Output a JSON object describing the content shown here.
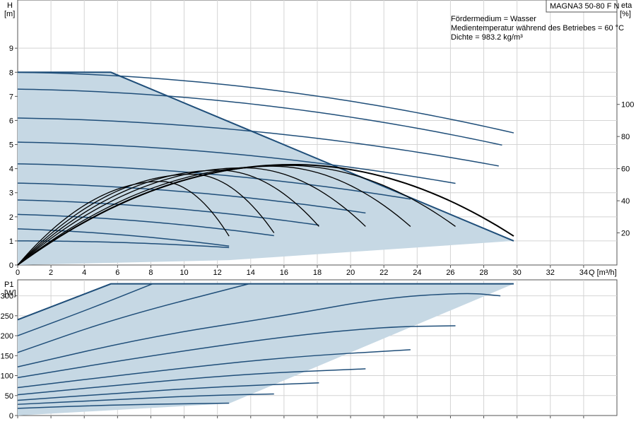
{
  "chart_data": {
    "type": "line",
    "model": "MAGNA3 50-80 F N",
    "info_lines": [
      "Fördermedium = Wasser",
      "Medientemperatur während des Betriebes = 60 °C",
      "Dichte = 983.2 kg/m³"
    ],
    "x_axis": {
      "label": "Q [m³/h]",
      "range": [
        0,
        36
      ],
      "ticks": [
        0,
        2,
        4,
        6,
        8,
        10,
        12,
        14,
        16,
        18,
        20,
        22,
        24,
        26,
        28,
        30,
        32,
        34
      ]
    },
    "top": {
      "ylabel": "H",
      "ylabel_unit": "[m]",
      "yrange": [
        0,
        11
      ],
      "yticks": [
        0,
        1,
        2,
        3,
        4,
        5,
        6,
        7,
        8,
        9
      ],
      "y2label": "eta",
      "y2label_unit": "[%]",
      "y2range": [
        0,
        165
      ],
      "y2ticks": [
        20,
        40,
        60,
        80,
        100
      ],
      "envelope": [
        [
          0,
          8
        ],
        [
          5.6,
          8
        ],
        [
          29.8,
          1
        ],
        [
          12.7,
          0.2
        ],
        [
          0,
          0
        ]
      ],
      "head_curves": [
        {
          "H0": 8.0,
          "Qmax": 29.8
        },
        {
          "H0": 7.3,
          "Qmax": 29.1
        },
        {
          "H0": 6.1,
          "Qmax": 28.9
        },
        {
          "H0": 5.1,
          "Qmax": 26.3
        },
        {
          "H0": 4.2,
          "Qmax": 23.6
        },
        {
          "H0": 3.4,
          "Qmax": 20.9
        },
        {
          "H0": 2.7,
          "Qmax": 18.1
        },
        {
          "H0": 2.1,
          "Qmax": 15.4
        },
        {
          "H0": 1.5,
          "Qmax": 12.7
        },
        {
          "H0": 1.0,
          "Qmax": 12.7
        }
      ],
      "eta_curves": [
        {
          "peak_q": 16.5,
          "peak": 62.5,
          "q_end": 29.8,
          "end": 18.0
        },
        {
          "peak_q": 16.2,
          "peak": 62.0,
          "q_end": 26.3,
          "end": 24.0
        },
        {
          "peak_q": 15.3,
          "peak": 61.5,
          "q_end": 23.6,
          "end": 24.0
        },
        {
          "peak_q": 13.6,
          "peak": 60.5,
          "q_end": 20.9,
          "end": 24.0
        },
        {
          "peak_q": 12.1,
          "peak": 59.0,
          "q_end": 18.1,
          "end": 24.0
        },
        {
          "peak_q": 10.5,
          "peak": 56.5,
          "q_end": 15.4,
          "end": 20.0
        },
        {
          "peak_q": 8.6,
          "peak": 52.0,
          "q_end": 12.7,
          "end": 18.0
        }
      ]
    },
    "bottom": {
      "ylabel": "P1",
      "ylabel_unit": "[W]",
      "yrange": [
        0,
        340
      ],
      "yticks": [
        0,
        50,
        100,
        150,
        200,
        250,
        300
      ],
      "envelope": [
        [
          0,
          240
        ],
        [
          5.6,
          330
        ],
        [
          29.8,
          330
        ],
        [
          12.7,
          30
        ],
        [
          0,
          0
        ]
      ],
      "power_curves": [
        {
          "points": [
            [
              0,
              240
            ],
            [
              5.6,
              330
            ]
          ]
        },
        {
          "points": [
            [
              0,
              200
            ],
            [
              4.5,
              270
            ],
            [
              8.1,
              330
            ]
          ]
        },
        {
          "points": [
            [
              0,
              158
            ],
            [
              6,
              245
            ],
            [
              13.9,
              330
            ]
          ]
        },
        {
          "points": [
            [
              0,
              122
            ],
            [
              8,
              198
            ],
            [
              16,
              250
            ],
            [
              22,
              295
            ],
            [
              27,
              308
            ],
            [
              29,
              300
            ]
          ]
        },
        {
          "points": [
            [
              0,
              95
            ],
            [
              8,
              150
            ],
            [
              16,
              198
            ],
            [
              22,
              222
            ],
            [
              26.3,
              225
            ]
          ]
        },
        {
          "points": [
            [
              0,
              70
            ],
            [
              8,
              110
            ],
            [
              16,
              146
            ],
            [
              23.6,
              165
            ]
          ]
        },
        {
          "points": [
            [
              0,
              52
            ],
            [
              7,
              80
            ],
            [
              14,
              105
            ],
            [
              20.9,
              117
            ]
          ]
        },
        {
          "points": [
            [
              0,
              38
            ],
            [
              6,
              56
            ],
            [
              12,
              72
            ],
            [
              18.1,
              82
            ]
          ]
        },
        {
          "points": [
            [
              0,
              28
            ],
            [
              6,
              40
            ],
            [
              11,
              50
            ],
            [
              15.4,
              54
            ]
          ]
        },
        {
          "points": [
            [
              0,
              18
            ],
            [
              6,
              27
            ],
            [
              12.7,
              31
            ]
          ]
        }
      ]
    }
  }
}
